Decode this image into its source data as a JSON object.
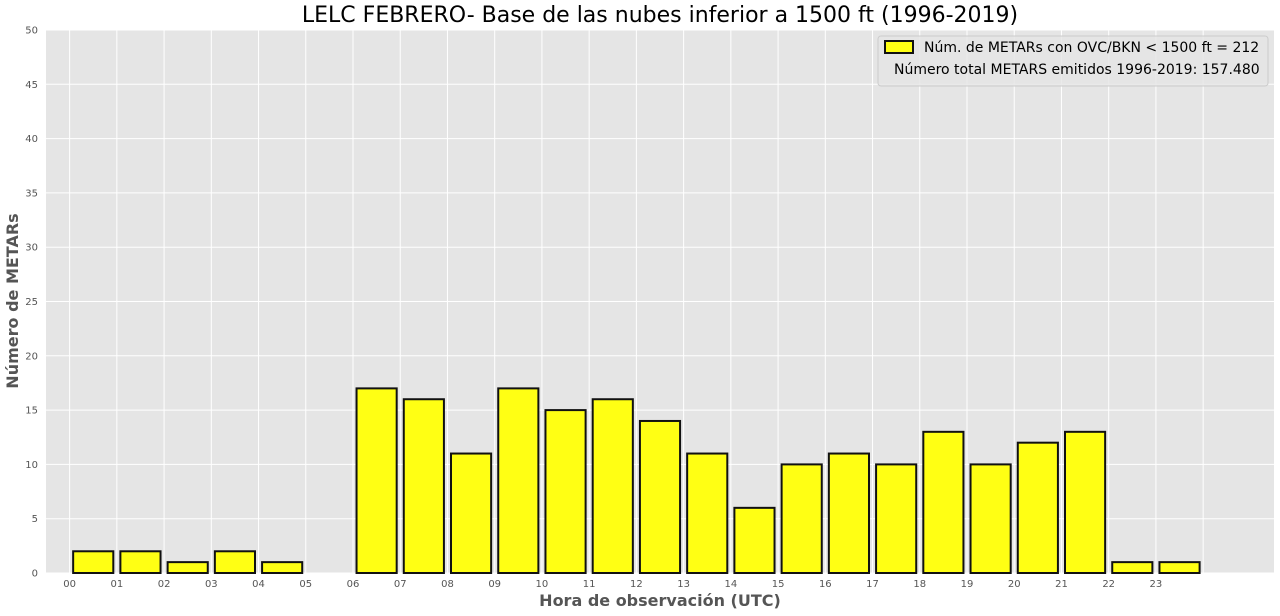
{
  "colors": {
    "background": "#ffffff",
    "plot_background": "#e5e5e5",
    "grid": "#ffffff",
    "bar_fill": "#ffff14",
    "bar_edge": "#111111",
    "text": "#555555"
  },
  "chart_data": {
    "type": "bar",
    "title": "LELC FEBRERO- Base de las nubes inferior a 1500 ft (1996-2019)",
    "xlabel": "Hora de observación (UTC)",
    "ylabel": "Número de METARs",
    "categories": [
      "00",
      "01",
      "02",
      "03",
      "04",
      "05",
      "06",
      "07",
      "08",
      "09",
      "10",
      "11",
      "12",
      "13",
      "14",
      "15",
      "16",
      "17",
      "18",
      "19",
      "20",
      "21",
      "22",
      "23"
    ],
    "values": [
      2,
      2,
      1,
      2,
      1,
      0,
      17,
      16,
      11,
      17,
      15,
      16,
      14,
      11,
      6,
      10,
      11,
      10,
      13,
      10,
      12,
      13,
      1,
      1
    ],
    "ylim": [
      0,
      50
    ],
    "yticks": [
      "0",
      "5",
      "10",
      "15",
      "20",
      "25",
      "30",
      "35",
      "40",
      "45",
      "50"
    ],
    "grid": true,
    "legend": {
      "placement": "top-right",
      "entry": "Núm. de METARs con OVC/BKN < 1500 ft = 212",
      "note": "Número total METARS emitidos 1996-2019: 157.480"
    }
  }
}
